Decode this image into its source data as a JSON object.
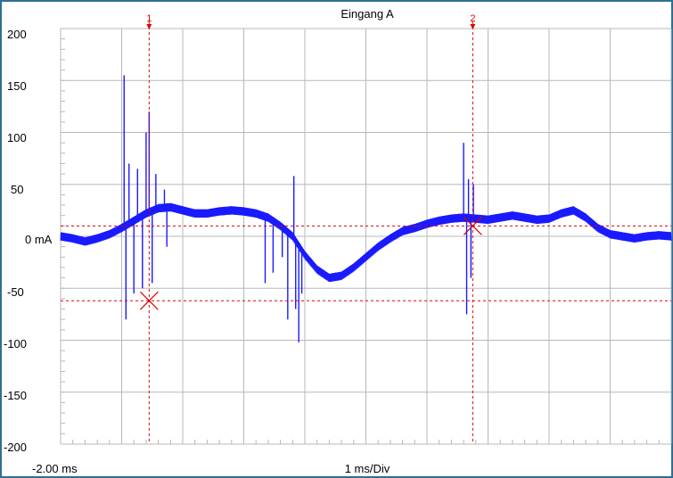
{
  "window": {
    "title": "Eingang A",
    "x_start": "-2.00 ms",
    "x_division": "1 ms/Div",
    "unit_label": "0 mA",
    "y_ticks": [
      "200",
      "150",
      "100",
      "50",
      "-50",
      "-100",
      "-150",
      "-200"
    ]
  },
  "cursors": {
    "c1_label": "1",
    "c2_label": "2"
  },
  "colors": {
    "trace": "#1a1aff",
    "cursor": "#e00000",
    "grid": "#b8b8b8",
    "frame": "#2f6f96"
  },
  "chart_data": {
    "type": "line",
    "title": "Eingang A",
    "xlabel": "1 ms/Div",
    "ylabel": "mA",
    "xlim": [
      -2.0,
      8.0
    ],
    "ylim": [
      -200,
      200
    ],
    "grid": true,
    "cursors": [
      {
        "name": "1",
        "x": -0.55,
        "y": -62
      },
      {
        "name": "2",
        "x": 4.75,
        "y": 10
      }
    ],
    "series": [
      {
        "x": [
          -2.0,
          -1.8,
          -1.6,
          -1.4,
          -1.2,
          -1.0,
          -0.8,
          -0.6,
          -0.4,
          -0.2,
          0.0,
          0.2,
          0.4,
          0.6,
          0.8,
          1.0,
          1.2,
          1.4,
          1.6,
          1.8,
          2.0,
          2.2,
          2.4,
          2.6,
          2.8,
          3.0,
          3.2,
          3.4,
          3.6,
          3.8,
          4.0,
          4.2,
          4.4,
          4.6,
          4.8,
          5.0,
          5.2,
          5.4,
          5.6,
          5.8,
          6.0,
          6.2,
          6.4,
          6.6,
          6.8,
          7.0,
          7.2,
          7.4,
          7.6,
          7.8,
          8.0
        ],
        "y": [
          0,
          -2,
          -5,
          -2,
          2,
          8,
          15,
          22,
          27,
          28,
          25,
          22,
          22,
          24,
          25,
          24,
          22,
          18,
          10,
          0,
          -18,
          -32,
          -40,
          -38,
          -30,
          -20,
          -10,
          -2,
          5,
          8,
          12,
          15,
          17,
          18,
          17,
          16,
          18,
          20,
          18,
          16,
          17,
          22,
          25,
          18,
          8,
          2,
          0,
          -2,
          0,
          1,
          0
        ]
      }
    ],
    "spikes": [
      {
        "x": -0.96,
        "y": 155
      },
      {
        "x": -0.93,
        "y": -80
      },
      {
        "x": -0.88,
        "y": 70
      },
      {
        "x": -0.8,
        "y": -55
      },
      {
        "x": -0.74,
        "y": 65
      },
      {
        "x": -0.66,
        "y": -50
      },
      {
        "x": -0.6,
        "y": 100
      },
      {
        "x": -0.55,
        "y": 120
      },
      {
        "x": -0.5,
        "y": -45
      },
      {
        "x": -0.44,
        "y": 60
      },
      {
        "x": -0.3,
        "y": 45
      },
      {
        "x": -0.26,
        "y": -10
      },
      {
        "x": 1.35,
        "y": -45
      },
      {
        "x": 1.48,
        "y": -35
      },
      {
        "x": 1.63,
        "y": -20
      },
      {
        "x": 1.72,
        "y": -80
      },
      {
        "x": 1.82,
        "y": 58
      },
      {
        "x": 1.85,
        "y": -70
      },
      {
        "x": 1.9,
        "y": -102
      },
      {
        "x": 1.95,
        "y": -55
      },
      {
        "x": 4.6,
        "y": 90
      },
      {
        "x": 4.65,
        "y": -75
      },
      {
        "x": 4.68,
        "y": 55
      },
      {
        "x": 4.72,
        "y": -40
      },
      {
        "x": 4.76,
        "y": 50
      }
    ]
  }
}
